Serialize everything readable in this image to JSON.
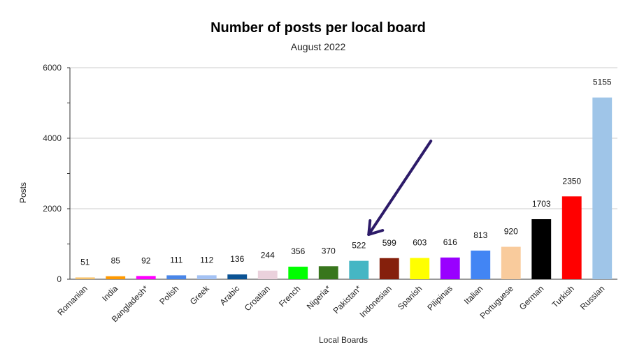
{
  "chart_data": {
    "type": "bar",
    "title": "Number of posts per local board",
    "subtitle": "August 2022",
    "xlabel": "Local Boards",
    "ylabel": "Posts",
    "ylim": [
      0,
      6000
    ],
    "yticks": [
      0,
      2000,
      4000,
      6000
    ],
    "grid": true,
    "categories": [
      "Romanian",
      "India",
      "Bangladesh*",
      "Polish",
      "Greek",
      "Arabic",
      "Croatian",
      "French",
      "Nigeria*",
      "Pakistan*",
      "Indonesian",
      "Spanish",
      "Pilipinas",
      "Italian",
      "Portuguese",
      "German",
      "Turkish",
      "Russian"
    ],
    "values": [
      51,
      85,
      92,
      111,
      112,
      136,
      244,
      356,
      370,
      522,
      599,
      603,
      616,
      813,
      920,
      1703,
      2350,
      5155
    ],
    "colors": [
      "#f6c26b",
      "#ff9900",
      "#ff00ff",
      "#4a86e8",
      "#a4c2f4",
      "#0b5394",
      "#ead1dc",
      "#00ff00",
      "#38761d",
      "#45b6c4",
      "#85200c",
      "#ffff00",
      "#9900ff",
      "#4285f4",
      "#f9cb9c",
      "#000000",
      "#ff0000",
      "#9fc5e8"
    ],
    "annotation": {
      "type": "arrow",
      "color": "#2d1b69",
      "points_to": "Pakistan*"
    }
  }
}
